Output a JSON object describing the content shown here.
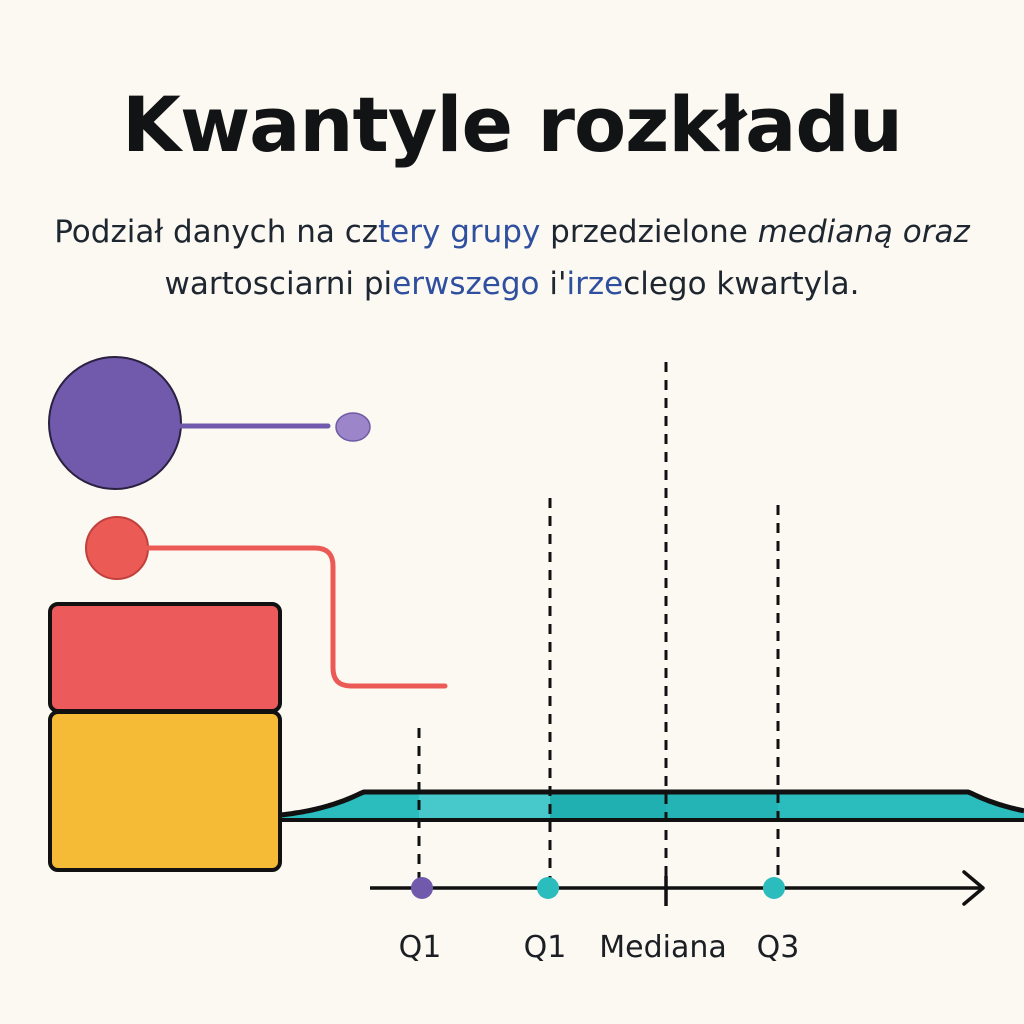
{
  "title": "Kwantyle rozkładu",
  "subtitle": {
    "line1": [
      {
        "text": "Podział danych na cz",
        "style": "plain"
      },
      {
        "text": "tery grupy",
        "style": "hl"
      },
      {
        "text": " przedzielone ",
        "style": "plain"
      },
      {
        "text": "medianą oraz",
        "style": "em"
      }
    ],
    "line2": [
      {
        "text": "wartosciarni pi",
        "style": "plain"
      },
      {
        "text": "erwszego",
        "style": "hl"
      },
      {
        "text": " i'",
        "style": "plain"
      },
      {
        "text": "irze",
        "style": "hl"
      },
      {
        "text": "clego kwartyla.",
        "style": "plain"
      }
    ]
  },
  "axis_labels": {
    "q1_left": "Q1",
    "q1_right": "Q1",
    "median": "Mediana",
    "q3": "Q3"
  },
  "colors": {
    "purple": "#7159ab",
    "red": "#ec5a55",
    "yellow": "#f6bb36",
    "teal": "#2bbcbd",
    "teal_light": "#47c8cb",
    "teal_dark": "#20b0b1",
    "outline": "#111111"
  }
}
